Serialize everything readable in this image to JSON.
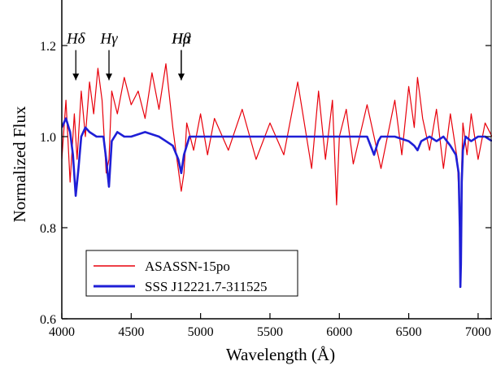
{
  "chart_data": {
    "type": "line",
    "xlabel": "Wavelength (Å)",
    "ylabel": "Normalized Flux",
    "xlim": [
      4000,
      7100
    ],
    "ylim": [
      0.6,
      1.3
    ],
    "x_ticks": [
      4000,
      4500,
      5000,
      5500,
      6000,
      6500,
      7000
    ],
    "x_tick_labels": [
      "4000",
      "4500",
      "5000",
      "5500",
      "6000",
      "6500",
      "7000"
    ],
    "y_ticks": [
      0.6,
      0.8,
      1.0,
      1.2
    ],
    "y_tick_labels": [
      "0.6",
      "0.8",
      "1.0",
      "1.2"
    ],
    "grid": false,
    "legend_position": "bottom-left",
    "series": [
      {
        "name": "ASASSN-15po",
        "color": "#e8000b",
        "x": [
          4000,
          4030,
          4060,
          4090,
          4110,
          4140,
          4170,
          4200,
          4230,
          4260,
          4290,
          4320,
          4340,
          4360,
          4400,
          4450,
          4500,
          4550,
          4600,
          4650,
          4700,
          4750,
          4800,
          4830,
          4861,
          4880,
          4900,
          4950,
          5000,
          5050,
          5100,
          5200,
          5300,
          5400,
          5500,
          5600,
          5700,
          5800,
          5850,
          5900,
          5950,
          5980,
          6000,
          6050,
          6100,
          6200,
          6300,
          6400,
          6450,
          6500,
          6540,
          6563,
          6580,
          6600,
          6650,
          6700,
          6750,
          6800,
          6850,
          6865,
          6870,
          6875,
          6880,
          6890,
          6920,
          6950,
          7000,
          7050,
          7100
        ],
        "y": [
          0.95,
          1.08,
          0.9,
          1.05,
          0.95,
          1.1,
          1.0,
          1.12,
          1.05,
          1.15,
          1.08,
          0.92,
          0.95,
          1.1,
          1.05,
          1.13,
          1.07,
          1.1,
          1.04,
          1.14,
          1.06,
          1.16,
          1.02,
          0.95,
          0.88,
          0.92,
          1.03,
          0.97,
          1.05,
          0.96,
          1.04,
          0.97,
          1.06,
          0.95,
          1.03,
          0.96,
          1.12,
          0.93,
          1.1,
          0.95,
          1.08,
          0.85,
          1.0,
          1.06,
          0.94,
          1.07,
          0.93,
          1.08,
          0.96,
          1.11,
          1.02,
          1.13,
          1.09,
          1.04,
          0.97,
          1.06,
          0.93,
          1.05,
          0.95,
          0.85,
          0.73,
          0.8,
          0.92,
          1.03,
          0.96,
          1.05,
          0.95,
          1.03,
          1.0
        ]
      },
      {
        "name": "SSS J12221.7-311525",
        "color": "#1f1fd6",
        "x": [
          4000,
          4030,
          4060,
          4080,
          4100,
          4120,
          4140,
          4170,
          4200,
          4250,
          4300,
          4320,
          4340,
          4360,
          4400,
          4450,
          4500,
          4600,
          4700,
          4750,
          4800,
          4840,
          4861,
          4880,
          4920,
          5000,
          5100,
          5200,
          5300,
          5400,
          5500,
          5600,
          5700,
          5800,
          5900,
          6000,
          6100,
          6200,
          6250,
          6280,
          6300,
          6400,
          6500,
          6540,
          6563,
          6590,
          6650,
          6700,
          6750,
          6800,
          6840,
          6860,
          6868,
          6872,
          6876,
          6882,
          6890,
          6910,
          6950,
          7000,
          7050,
          7100
        ],
        "y": [
          1.02,
          1.04,
          1.01,
          0.96,
          0.87,
          0.93,
          1.0,
          1.02,
          1.01,
          1.0,
          1.0,
          0.95,
          0.89,
          0.99,
          1.01,
          1.0,
          1.0,
          1.01,
          1.0,
          0.99,
          0.98,
          0.95,
          0.92,
          0.96,
          1.0,
          1.0,
          1.0,
          1.0,
          1.0,
          1.0,
          1.0,
          1.0,
          1.0,
          1.0,
          1.0,
          1.0,
          1.0,
          1.0,
          0.96,
          0.99,
          1.0,
          1.0,
          0.99,
          0.98,
          0.97,
          0.99,
          1.0,
          0.99,
          1.0,
          0.98,
          0.96,
          0.92,
          0.8,
          0.67,
          0.72,
          0.9,
          0.97,
          1.0,
          0.99,
          1.0,
          1.0,
          0.99
        ]
      }
    ],
    "annotations": [
      {
        "text": "Hδ",
        "x": 4101,
        "y_arrow_start": 1.19,
        "y_arrow_end": 1.124
      },
      {
        "text": "Hγ",
        "x": 4340,
        "y_arrow_start": 1.19,
        "y_arrow_end": 1.124
      },
      {
        "text": "Hβ",
        "x": 4861,
        "y_arrow_start": 1.19,
        "y_arrow_end": 1.124
      },
      {
        "text": "Hα",
        "x": 4861,
        "y_arrow_start": 1.19,
        "y_arrow_end": 1.124
      }
    ]
  }
}
